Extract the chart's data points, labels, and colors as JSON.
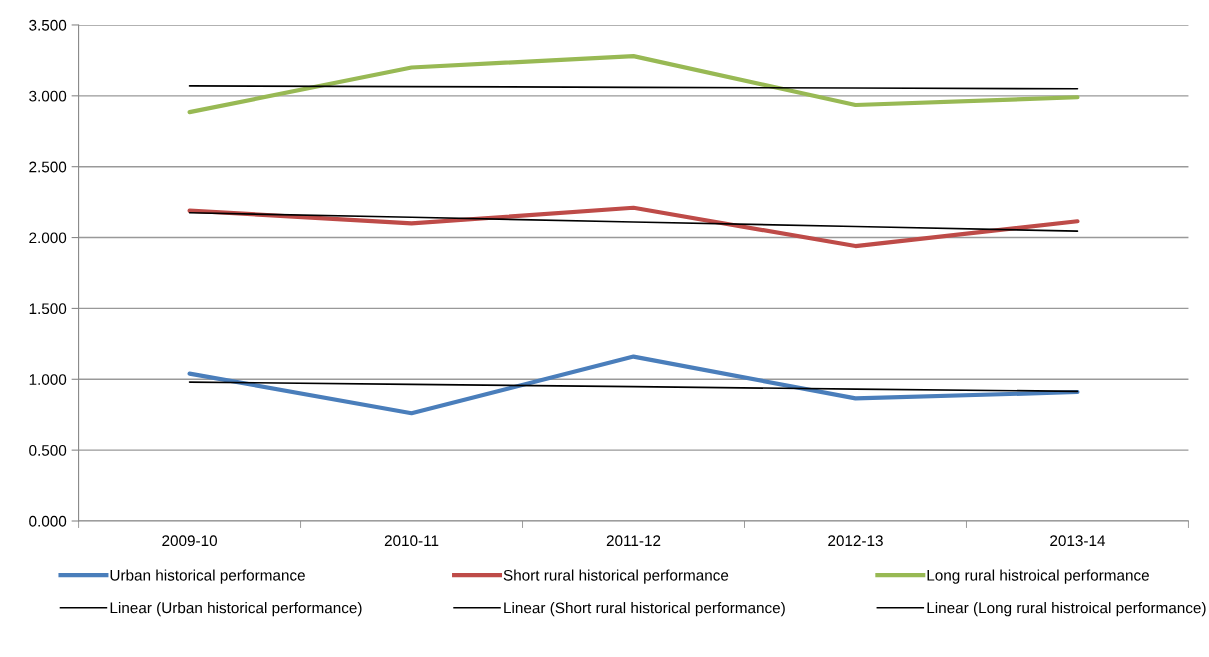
{
  "chart_data": {
    "type": "line",
    "categories": [
      "2009-10",
      "2010-11",
      "2011-12",
      "2012-13",
      "2013-14"
    ],
    "series": [
      {
        "name": "Urban historical performance",
        "color": "#4a7ebb",
        "values": [
          1.04,
          0.76,
          1.16,
          0.865,
          0.91
        ]
      },
      {
        "name": "Linear (Urban historical performance)",
        "color": "#000000",
        "values": [
          0.98,
          0.964,
          0.948,
          0.931,
          0.915
        ]
      },
      {
        "name": "Short rural historical performance",
        "color": "#be4b48",
        "values": [
          2.19,
          2.1,
          2.21,
          1.94,
          2.115
        ]
      },
      {
        "name": "Linear (Short rural historical performance)",
        "color": "#000000",
        "values": [
          2.175,
          2.143,
          2.11,
          2.078,
          2.045
        ]
      },
      {
        "name": "Long rural histroical performance",
        "color": "#98b954",
        "values": [
          2.885,
          3.2,
          3.28,
          2.935,
          2.99
        ]
      },
      {
        "name": "Linear (Long rural histroical performance)",
        "color": "#000000",
        "values": [
          3.07,
          3.065,
          3.06,
          3.055,
          3.05
        ]
      }
    ],
    "ylim": [
      0,
      3.5
    ],
    "yticks": [
      {
        "value": 0,
        "label": "0.000"
      },
      {
        "value": 0.5,
        "label": "0.500"
      },
      {
        "value": 1,
        "label": "1.000"
      },
      {
        "value": 1.5,
        "label": "1.500"
      },
      {
        "value": 2,
        "label": "2.000"
      },
      {
        "value": 2.5,
        "label": "2.500"
      },
      {
        "value": 3,
        "label": "3.000"
      },
      {
        "value": 3.5,
        "label": "3.500"
      }
    ],
    "grid": "y",
    "legend": "bottom",
    "line_style": "solid",
    "marker": "none"
  }
}
